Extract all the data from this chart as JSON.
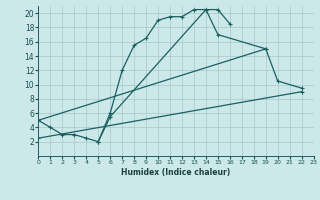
{
  "xlabel": "Humidex (Indice chaleur)",
  "background_color": "#cce8e8",
  "grid_color": "#aac8c8",
  "line_color": "#1a6060",
  "xlim": [
    0,
    23
  ],
  "ylim": [
    0,
    21
  ],
  "xticks": [
    0,
    1,
    2,
    3,
    4,
    5,
    6,
    7,
    8,
    9,
    10,
    11,
    12,
    13,
    14,
    15,
    16,
    17,
    18,
    19,
    20,
    21,
    22,
    23
  ],
  "yticks": [
    2,
    4,
    6,
    8,
    10,
    12,
    14,
    16,
    18,
    20
  ],
  "curve1_x": [
    0,
    1,
    2,
    3,
    4,
    5,
    6,
    7,
    8,
    9,
    10,
    11,
    12,
    13,
    14,
    15,
    16
  ],
  "curve1_y": [
    5,
    4,
    3,
    3,
    2.5,
    2,
    6,
    12,
    15.5,
    16.5,
    19,
    19.5,
    19.5,
    20.5,
    20.5,
    20.5,
    18.5
  ],
  "curve2_x": [
    5,
    6,
    14,
    15,
    19,
    20,
    22
  ],
  "curve2_y": [
    2,
    5.5,
    20.5,
    17,
    15,
    10.5,
    9.5
  ],
  "curve3_x": [
    0,
    19
  ],
  "curve3_y": [
    5,
    15
  ],
  "curve4_x": [
    0,
    22
  ],
  "curve4_y": [
    2.5,
    9
  ]
}
